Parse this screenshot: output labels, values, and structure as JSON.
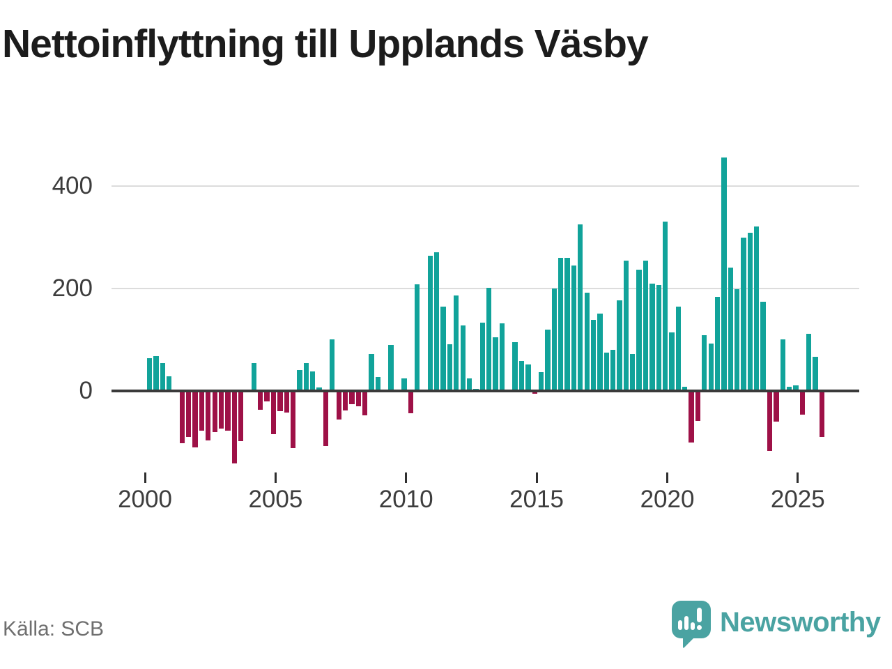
{
  "title": "Nettoinflyttning till Upplands Väsby",
  "source": "Källa: SCB",
  "branding": {
    "name": "Newsworthy",
    "icon": "bar-chart-speech-bubble-icon",
    "color": "#4aa3a2"
  },
  "colors": {
    "positive_bar": "#11a39a",
    "negative_bar": "#9e1147",
    "axis_line": "#3a3a3a",
    "gridline": "#dcdcdc",
    "tick_label": "#3d3d3d",
    "title_text": "#1c1c1c",
    "source_text": "#6f6f6f"
  },
  "chart_data": {
    "type": "bar",
    "title": "Nettoinflyttning till Upplands Väsby",
    "frequency": "quarterly",
    "start_quarter": "2000-Q1",
    "end_quarter": "2025-Q4",
    "grid": "horizontal-lines",
    "legend": "none",
    "ylim": [
      -160,
      480
    ],
    "y_axis": {
      "tick_values": [
        0,
        200,
        400
      ],
      "tick_labels": [
        "0",
        "200",
        "400"
      ],
      "gridline_values": [
        200,
        400
      ]
    },
    "x_axis": {
      "tick_labels": [
        "2000",
        "2005",
        "2010",
        "2015",
        "2020",
        "2025"
      ],
      "tick_quarter_indices": [
        0,
        20,
        40,
        60,
        80,
        100
      ]
    },
    "values": [
      64,
      68,
      55,
      28,
      0,
      -102,
      -90,
      -110,
      -78,
      -97,
      -80,
      -73,
      -78,
      -141,
      -98,
      0,
      55,
      -37,
      -20,
      -84,
      -39,
      -42,
      -112,
      41,
      55,
      38,
      7,
      -107,
      100,
      -56,
      -38,
      -26,
      -30,
      -47,
      72,
      27,
      0,
      89,
      0,
      24,
      -44,
      208,
      0,
      263,
      270,
      165,
      91,
      186,
      127,
      24,
      4,
      133,
      201,
      104,
      132,
      0,
      95,
      59,
      51,
      -5,
      37,
      119,
      200,
      259,
      259,
      245,
      325,
      191,
      138,
      151,
      75,
      80,
      177,
      254,
      72,
      237,
      254,
      209,
      206,
      330,
      114,
      165,
      8,
      -101,
      -58,
      108,
      93,
      183,
      455,
      241,
      198,
      299,
      308,
      320,
      174,
      -117,
      -60,
      101,
      8,
      11,
      -46,
      112,
      67,
      -90
    ]
  }
}
